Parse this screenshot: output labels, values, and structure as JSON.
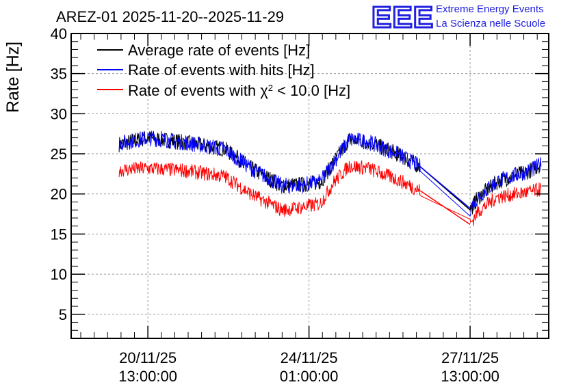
{
  "chart_data": {
    "type": "line",
    "title": "AREZ-01 2025-11-20--2025-11-29",
    "ylabel": "Rate [Hz]",
    "xlabel": "",
    "ylim": [
      2,
      40
    ],
    "yticks": [
      5,
      10,
      15,
      20,
      25,
      30,
      35,
      40
    ],
    "xlim_hours": [
      -40,
      209
    ],
    "xtick_labels": [
      {
        "hours": 0,
        "date": "20/11/25",
        "time": "13:00:00"
      },
      {
        "hours": 84,
        "date": "24/11/25",
        "time": "01:00:00"
      },
      {
        "hours": 168,
        "date": "27/11/25",
        "time": "13:00:00"
      }
    ],
    "grid": true,
    "legend_position": "top-left",
    "series": [
      {
        "name": "Average rate of events [Hz]",
        "color": "#000000",
        "points": [
          [
            -15,
            26.2
          ],
          [
            0,
            27.0
          ],
          [
            20,
            26.4
          ],
          [
            40,
            25.6
          ],
          [
            55,
            23.0
          ],
          [
            70,
            21.0
          ],
          [
            82,
            21.2
          ],
          [
            90,
            21.5
          ],
          [
            97,
            24.0
          ],
          [
            105,
            26.8
          ],
          [
            115,
            26.5
          ],
          [
            130,
            25.0
          ],
          [
            142,
            23.4
          ],
          [
            165,
            20.0
          ],
          [
            168,
            18.0
          ],
          [
            172,
            19.5
          ],
          [
            182,
            21.5
          ],
          [
            200,
            23.0
          ],
          [
            205,
            23.7
          ]
        ]
      },
      {
        "name": "Rate of events with hits [Hz]",
        "color": "#0000ff",
        "points": [
          [
            -15,
            26.3
          ],
          [
            0,
            27.0
          ],
          [
            20,
            26.4
          ],
          [
            40,
            25.6
          ],
          [
            55,
            23.0
          ],
          [
            70,
            21.0
          ],
          [
            82,
            21.2
          ],
          [
            90,
            21.5
          ],
          [
            97,
            24.0
          ],
          [
            105,
            26.8
          ],
          [
            115,
            26.5
          ],
          [
            130,
            25.0
          ],
          [
            142,
            23.4
          ],
          [
            165,
            18.3
          ],
          [
            168,
            18.2
          ],
          [
            172,
            19.6
          ],
          [
            182,
            21.6
          ],
          [
            200,
            23.0
          ],
          [
            205,
            23.7
          ]
        ]
      },
      {
        "name": "Rate of events with χ2 < 10.0 [Hz]",
        "color": "#ff0000",
        "points": [
          [
            -15,
            23.0
          ],
          [
            0,
            23.2
          ],
          [
            20,
            22.9
          ],
          [
            40,
            22.2
          ],
          [
            55,
            19.8
          ],
          [
            70,
            18.0
          ],
          [
            82,
            18.4
          ],
          [
            90,
            18.8
          ],
          [
            97,
            21.5
          ],
          [
            105,
            23.5
          ],
          [
            115,
            23.2
          ],
          [
            130,
            21.8
          ],
          [
            142,
            20.4
          ],
          [
            165,
            15.8
          ],
          [
            168,
            16.2
          ],
          [
            172,
            17.8
          ],
          [
            182,
            19.6
          ],
          [
            200,
            20.3
          ],
          [
            205,
            20.6
          ]
        ]
      }
    ]
  },
  "logo": {
    "mark": "EEE",
    "line1": "Extreme Energy Events",
    "line2": "La Scienza nelle Scuole"
  },
  "legend": {
    "avg_label": "Average rate of events [Hz]",
    "hits_label": "Rate of events with hits [Hz]",
    "chi_prefix": "Rate of events with χ",
    "chi_sup": "2",
    "chi_suffix": " < 10.0 [Hz]"
  },
  "colors": {
    "avg": "#000000",
    "hits": "#0000ff",
    "chi": "#ff0000",
    "logo": "#2020e0"
  }
}
